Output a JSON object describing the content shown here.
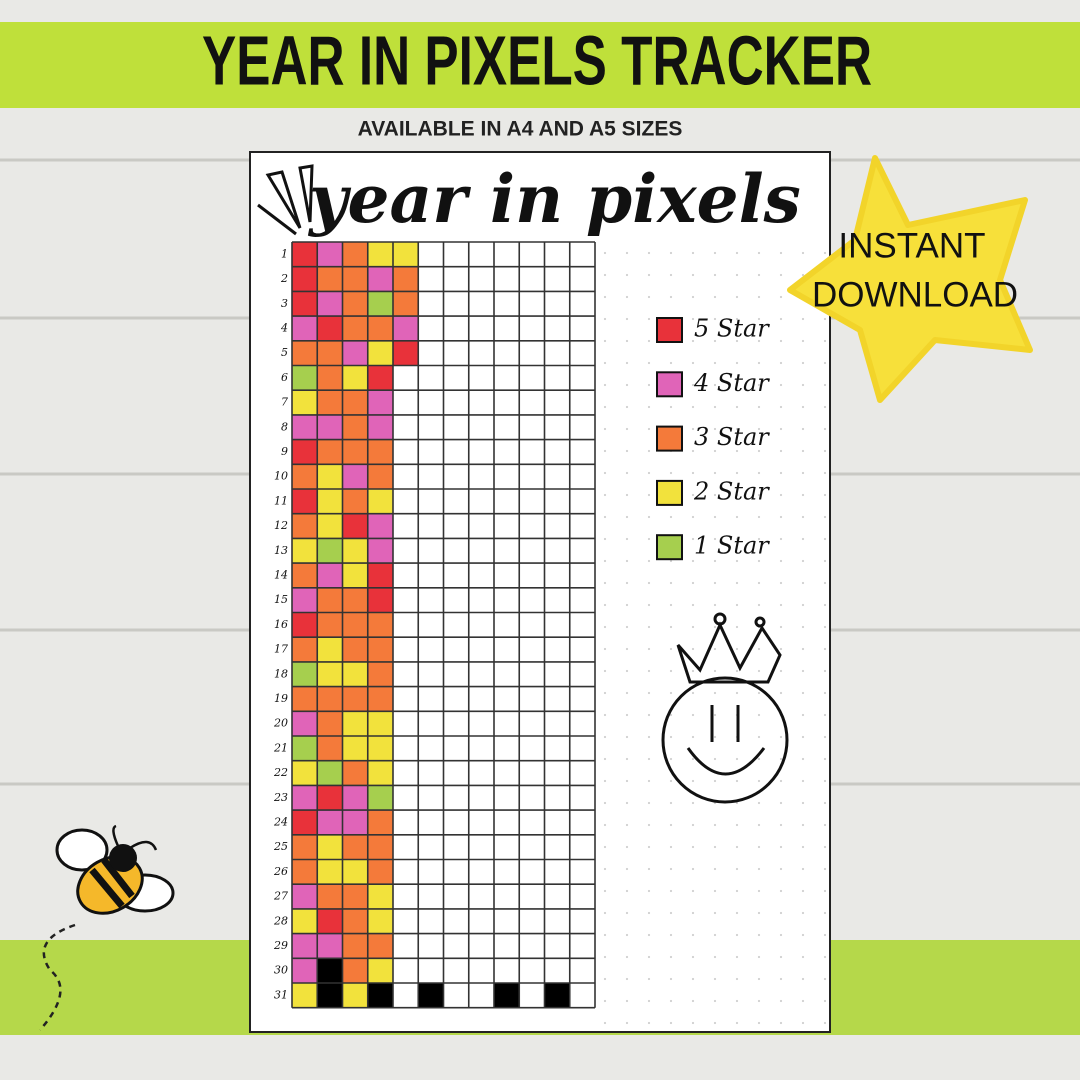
{
  "header": {
    "title": "YEAR IN PIXELS TRACKER",
    "subtitle": "AVAILABLE IN A4 AND A5 SIZES",
    "badge": [
      "INSTANT",
      "DOWNLOAD"
    ]
  },
  "page": {
    "heading": "year in pixels"
  },
  "legend": [
    {
      "rating": 5,
      "label": "5 Star",
      "color": "#e8323a"
    },
    {
      "rating": 4,
      "label": "4 Star",
      "color": "#e064b8"
    },
    {
      "rating": 3,
      "label": "3 Star",
      "color": "#f47a3a"
    },
    {
      "rating": 2,
      "label": "2 Star",
      "color": "#f2e23c"
    },
    {
      "rating": 1,
      "label": "1 Star",
      "color": "#a6cf4e"
    }
  ],
  "grid": {
    "days": [
      1,
      2,
      3,
      4,
      5,
      6,
      7,
      8,
      9,
      10,
      11,
      12,
      13,
      14,
      15,
      16,
      17,
      18,
      19,
      20,
      21,
      22,
      23,
      24,
      25,
      26,
      27,
      28,
      29,
      30,
      31
    ],
    "ratings": [
      [
        5,
        4,
        3,
        2,
        2
      ],
      [
        5,
        3,
        3,
        4,
        3
      ],
      [
        5,
        4,
        3,
        1,
        3
      ],
      [
        4,
        5,
        3,
        3,
        4
      ],
      [
        3,
        3,
        4,
        2,
        5
      ],
      [
        1,
        3,
        2,
        5
      ],
      [
        2,
        3,
        3,
        4
      ],
      [
        4,
        4,
        3,
        4
      ],
      [
        5,
        3,
        3,
        3
      ],
      [
        3,
        2,
        4,
        3
      ],
      [
        5,
        2,
        3,
        2
      ],
      [
        3,
        2,
        5,
        4
      ],
      [
        2,
        1,
        2,
        4
      ],
      [
        3,
        4,
        2,
        5
      ],
      [
        4,
        3,
        3,
        5
      ],
      [
        5,
        3,
        3,
        3
      ],
      [
        3,
        2,
        3,
        3
      ],
      [
        1,
        2,
        2,
        3
      ],
      [
        3,
        3,
        3,
        3
      ],
      [
        4,
        3,
        2,
        2
      ],
      [
        1,
        3,
        2,
        2
      ],
      [
        2,
        1,
        3,
        2
      ],
      [
        4,
        5,
        4,
        1
      ],
      [
        5,
        4,
        4,
        3
      ],
      [
        3,
        2,
        3,
        3
      ],
      [
        3,
        2,
        2,
        3
      ],
      [
        4,
        3,
        3,
        2
      ],
      [
        2,
        5,
        3,
        2
      ],
      [
        4,
        4,
        3,
        3
      ],
      [
        4,
        null,
        3,
        2
      ],
      [
        2,
        null,
        2
      ]
    ],
    "blocked": [
      [
        30,
        2
      ],
      [
        31,
        2
      ],
      [
        31,
        4
      ],
      [
        31,
        6
      ],
      [
        31,
        9
      ],
      [
        31,
        11
      ]
    ]
  }
}
